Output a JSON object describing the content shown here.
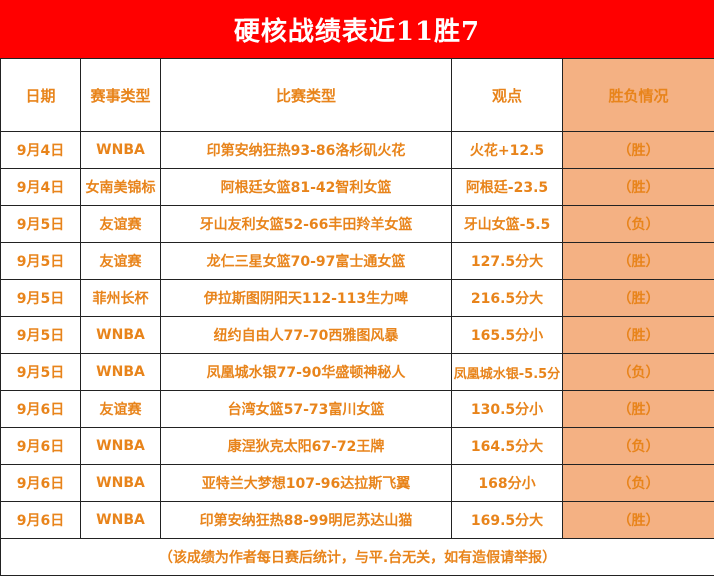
{
  "title": "硬核战绩表近11胜7",
  "headers": {
    "date": "日期",
    "league": "赛事类型",
    "match": "比赛类型",
    "pick": "观点",
    "result": "胜负情况"
  },
  "rows": [
    {
      "date": "9月4日",
      "league": "WNBA",
      "match": "印第安纳狂热93-86洛杉矶火花",
      "pick": "火花+12.5",
      "result": "（胜）"
    },
    {
      "date": "9月4日",
      "league": "女南美锦标",
      "match": "阿根廷女篮81-42智利女篮",
      "pick": "阿根廷-23.5",
      "result": "（胜）"
    },
    {
      "date": "9月5日",
      "league": "友谊赛",
      "match": "牙山友利女篮52-66丰田羚羊女篮",
      "pick": "牙山女篮-5.5",
      "result": "（负）"
    },
    {
      "date": "9月5日",
      "league": "友谊赛",
      "match": "龙仁三星女篮70-97富士通女篮",
      "pick": "127.5分大",
      "result": "（胜）"
    },
    {
      "date": "9月5日",
      "league": "菲州长杯",
      "match": "伊拉斯图阴阳天112-113生力啤",
      "pick": "216.5分大",
      "result": "（胜）"
    },
    {
      "date": "9月5日",
      "league": "WNBA",
      "match": "纽约自由人77-70西雅图风暴",
      "pick": "165.5分小",
      "result": "（胜）"
    },
    {
      "date": "9月5日",
      "league": "WNBA",
      "match": "凤凰城水银77-90华盛顿神秘人",
      "pick": "凤凰城水银-5.5分",
      "result": "（负）"
    },
    {
      "date": "9月6日",
      "league": "友谊赛",
      "match": "台湾女篮57-73富川女篮",
      "pick": "130.5分小",
      "result": "（胜）"
    },
    {
      "date": "9月6日",
      "league": "WNBA",
      "match": "康涅狄克太阳67-72王牌",
      "pick": "164.5分大",
      "result": "（负）"
    },
    {
      "date": "9月6日",
      "league": "WNBA",
      "match": "亚特兰大梦想107-96达拉斯飞翼",
      "pick": "168分小",
      "result": "（负）"
    },
    {
      "date": "9月6日",
      "league": "WNBA",
      "match": "印第安纳狂热88-99明尼苏达山猫",
      "pick": "169.5分大",
      "result": "（胜）"
    }
  ],
  "footer": "（该成绩为作者每日赛后统计，与平.台无关，如有造假请举报）",
  "colors": {
    "title_bg": "#ff0000",
    "title_text": "#ffffff",
    "text": "#e8841b",
    "result_bg": "#f4b183"
  }
}
